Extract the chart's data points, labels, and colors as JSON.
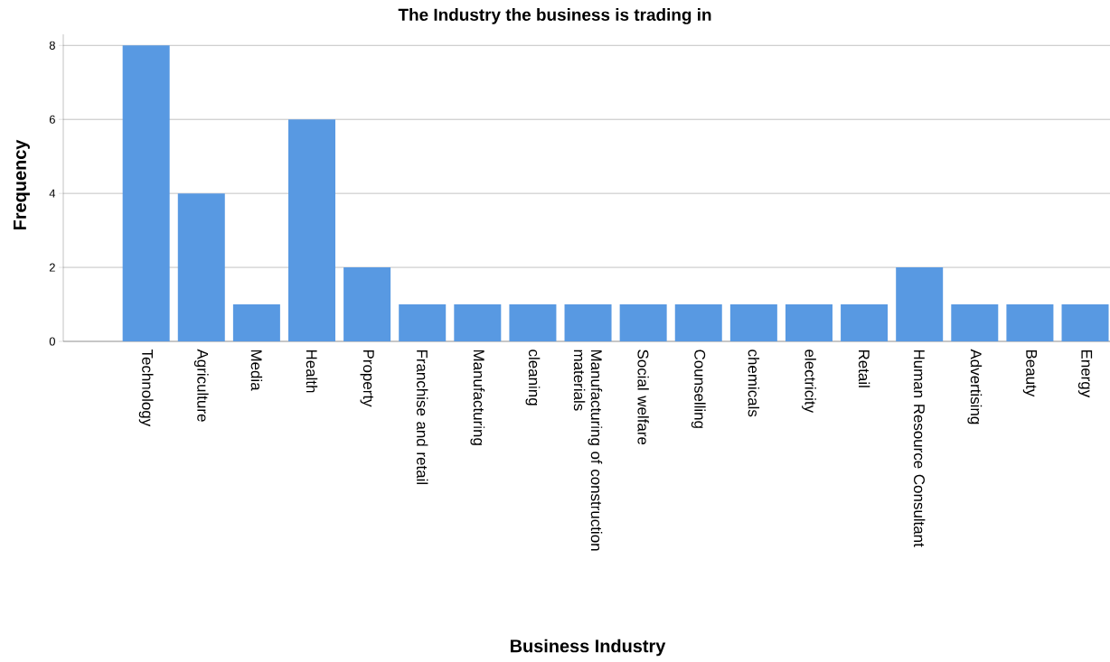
{
  "chart_data": {
    "type": "bar",
    "title": "The Industry the business is trading in",
    "xlabel": "Business Industry",
    "ylabel": "Frequency",
    "categories": [
      "Technology",
      "Agriculture",
      "Media",
      "Health",
      "Property",
      "Franchise and retail",
      "Manufacturing",
      "cleaning",
      "Manufacturing of construction materials",
      "Social welfare",
      "Counselling",
      "chemicals",
      "electricity",
      "Retail",
      "Human Resource Consultant",
      "Advertising",
      "Beauty",
      "Energy"
    ],
    "values": [
      8,
      4,
      1,
      6,
      2,
      1,
      1,
      1,
      1,
      1,
      1,
      1,
      1,
      1,
      2,
      1,
      1,
      1
    ],
    "color": "#5899e2",
    "ylim": [
      0,
      8.3
    ],
    "yticks": [
      0,
      2,
      4,
      6,
      8
    ],
    "grid": "y"
  }
}
